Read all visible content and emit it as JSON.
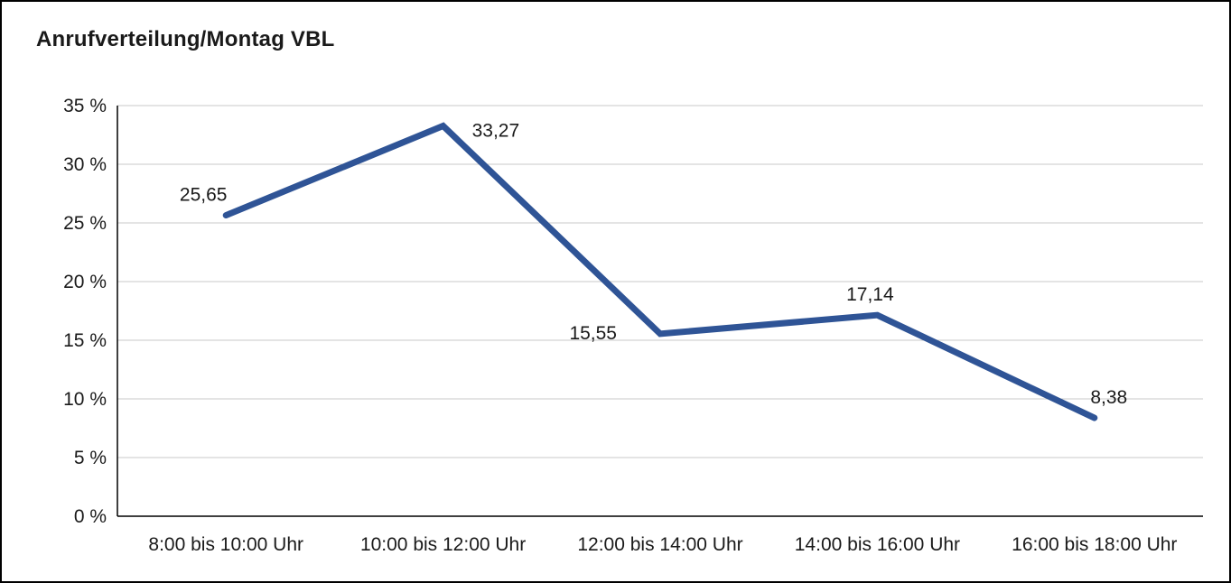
{
  "title": "Anrufverteilung/Montag VBL",
  "colors": {
    "line": "#2f5496",
    "grid": "#c8c8c8",
    "axis": "#000000",
    "text": "#1a1a1a",
    "background": "#ffffff",
    "border": "#000000"
  },
  "chart_data": {
    "type": "line",
    "title": "Anrufverteilung/Montag VBL",
    "categories": [
      "8:00 bis 10:00 Uhr",
      "10:00 bis 12:00 Uhr",
      "12:00 bis 14:00 Uhr",
      "14:00 bis 16:00 Uhr",
      "16:00 bis 18:00 Uhr"
    ],
    "values": [
      25.65,
      33.27,
      15.55,
      17.14,
      8.38
    ],
    "value_labels": [
      "25,65",
      "33,27",
      "15,55",
      "17,14",
      "8,38"
    ],
    "xlabel": "",
    "ylabel": "",
    "ylim": [
      0,
      35
    ],
    "ytick_step": 5,
    "ytick_suffix": " %",
    "grid": "horizontal",
    "legend": "none"
  }
}
